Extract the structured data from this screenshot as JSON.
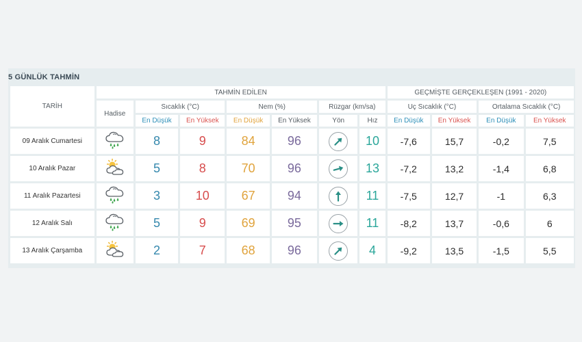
{
  "title": "5 GÜNLÜK TAHMİN",
  "headers": {
    "date": "TARİH",
    "forecast_group": "TAHMİN EDİLEN",
    "history_group": "GEÇMİŞTE GERÇEKLEŞEN (1991 - 2020)",
    "event": "Hadise",
    "temp": "Sıcaklık (°C)",
    "humidity": "Nem (%)",
    "wind": "Rüzgar (km/sa)",
    "extreme_temp": "Uç Sıcaklık (°C)",
    "avg_temp": "Ortalama Sıcaklık (°C)",
    "low": "En Düşük",
    "high": "En Yüksek",
    "direction": "Yön",
    "speed": "Hız"
  },
  "days": [
    {
      "date": "09 Aralık Cumartesi",
      "icon": "cloud-rain-icon",
      "t_low": "8",
      "t_high": "9",
      "h_low": "84",
      "h_high": "96",
      "wind_dir_deg": 45,
      "wind_speed": "10",
      "ext_low": "-7,6",
      "ext_high": "15,7",
      "avg_low": "-0,2",
      "avg_high": "7,5"
    },
    {
      "date": "10 Aralık Pazar",
      "icon": "partly-sunny-icon",
      "t_low": "5",
      "t_high": "8",
      "h_low": "70",
      "h_high": "96",
      "wind_dir_deg": 75,
      "wind_speed": "13",
      "ext_low": "-7,2",
      "ext_high": "13,2",
      "avg_low": "-1,4",
      "avg_high": "6,8"
    },
    {
      "date": "11 Aralık Pazartesi",
      "icon": "cloud-rain-icon",
      "t_low": "3",
      "t_high": "10",
      "h_low": "67",
      "h_high": "94",
      "wind_dir_deg": 0,
      "wind_speed": "11",
      "ext_low": "-7,5",
      "ext_high": "12,7",
      "avg_low": "-1",
      "avg_high": "6,3"
    },
    {
      "date": "12 Aralık Salı",
      "icon": "cloud-rain-icon",
      "t_low": "5",
      "t_high": "9",
      "h_low": "69",
      "h_high": "95",
      "wind_dir_deg": 90,
      "wind_speed": "11",
      "ext_low": "-8,2",
      "ext_high": "13,7",
      "avg_low": "-0,6",
      "avg_high": "6"
    },
    {
      "date": "13 Aralık Çarşamba",
      "icon": "partly-sunny-icon",
      "t_low": "2",
      "t_high": "7",
      "h_low": "68",
      "h_high": "96",
      "wind_dir_deg": 45,
      "wind_speed": "4",
      "ext_low": "-9,2",
      "ext_high": "13,5",
      "avg_low": "-1,5",
      "avg_high": "5,5"
    }
  ]
}
